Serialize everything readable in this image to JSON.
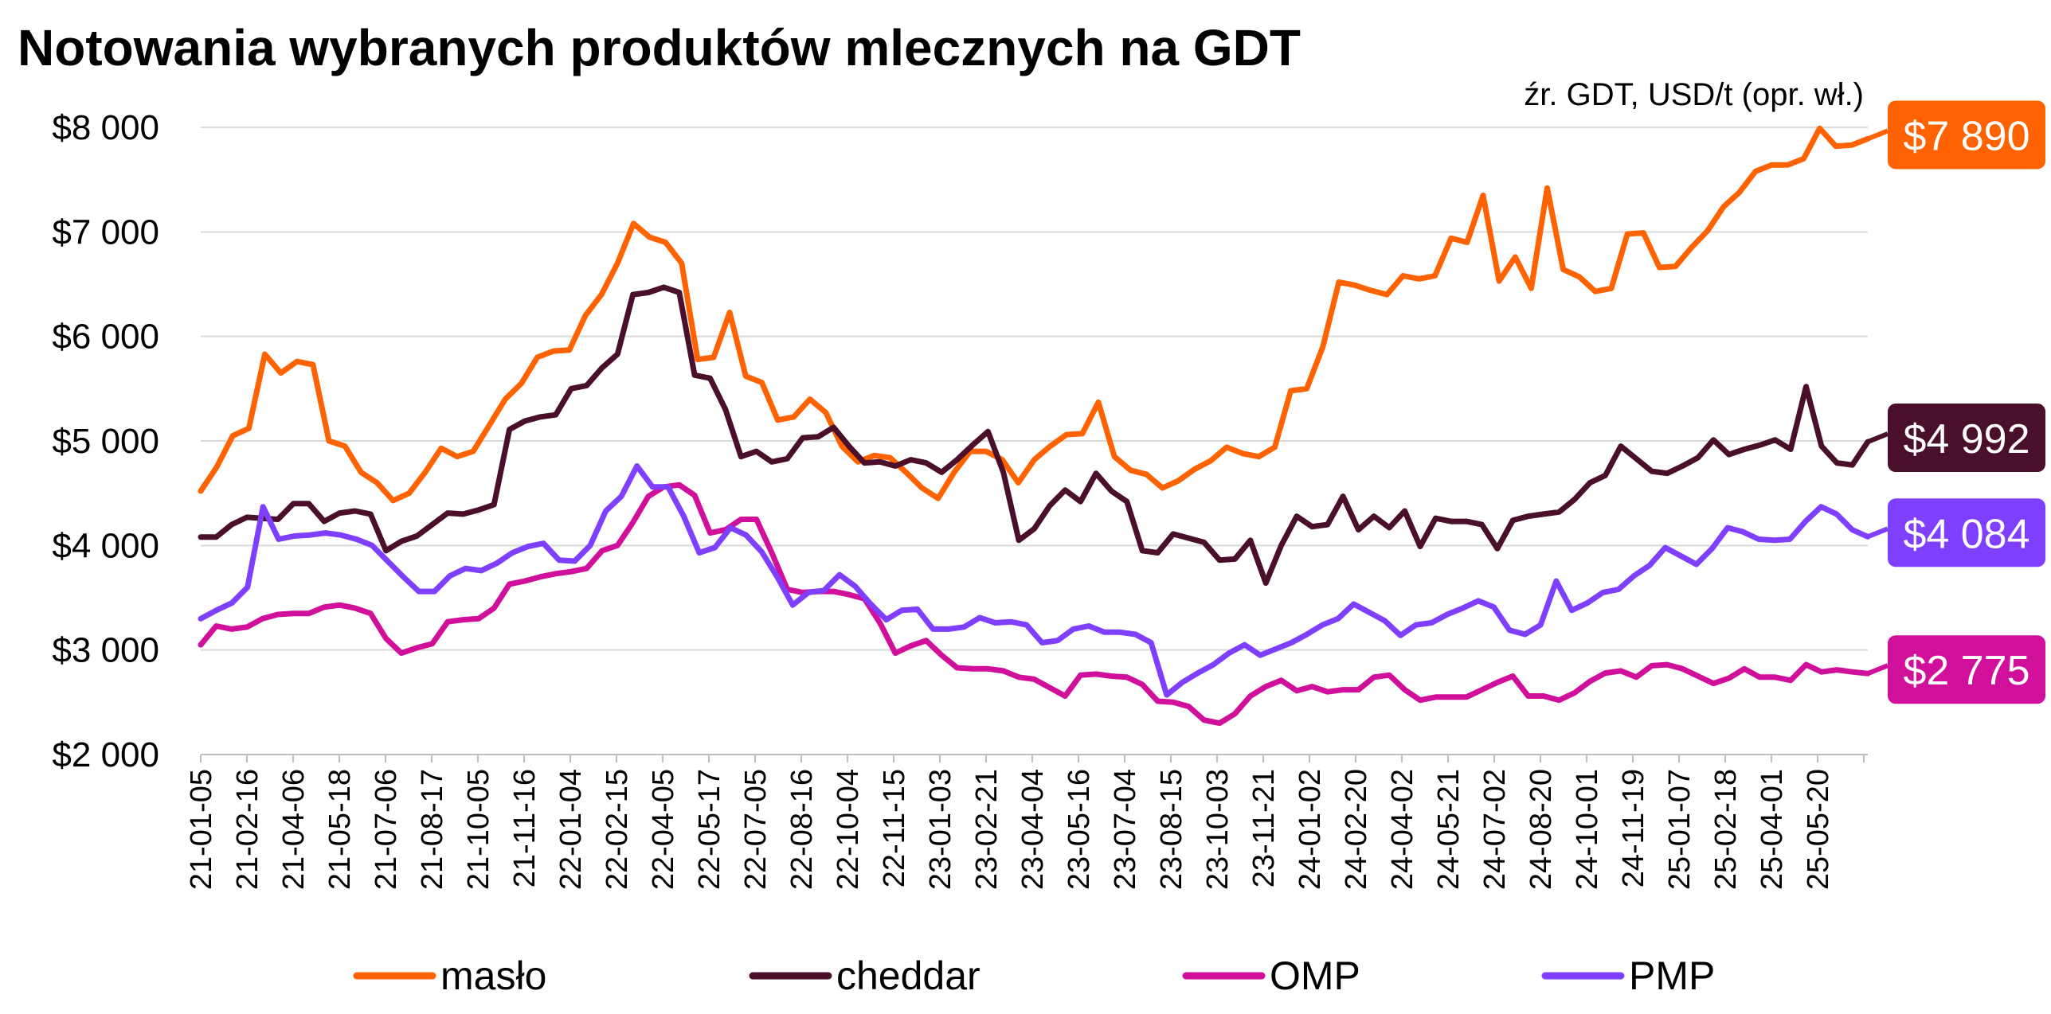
{
  "chart_data": {
    "type": "line",
    "title": "Notowania wybranych produktów mlecznych na GDT",
    "source": "źr. GDT, USD/t (opr. wł.)",
    "ylim": [
      2000,
      8000
    ],
    "yticks": [
      2000,
      3000,
      4000,
      5000,
      6000,
      7000,
      8000
    ],
    "ytick_labels": [
      "$2 000",
      "$3 000",
      "$4 000",
      "$5 000",
      "$6 000",
      "$7 000",
      "$8 000"
    ],
    "xtick_labels": [
      "21-01-05",
      "21-02-16",
      "21-04-06",
      "21-05-18",
      "21-07-06",
      "21-08-17",
      "21-10-05",
      "21-11-16",
      "22-01-04",
      "22-02-15",
      "22-04-05",
      "22-05-17",
      "22-07-05",
      "22-08-16",
      "22-10-04",
      "22-11-15",
      "23-01-03",
      "23-02-21",
      "23-04-04",
      "23-05-16",
      "23-07-04",
      "23-08-15",
      "23-10-03",
      "23-11-21",
      "24-01-02",
      "24-02-20",
      "24-04-02",
      "24-05-21",
      "24-07-02",
      "24-08-20",
      "24-10-01",
      "24-11-19",
      "25-01-07",
      "25-02-18",
      "25-04-01",
      "25-05-20"
    ],
    "grid": true,
    "legend_position": "bottom",
    "series": [
      {
        "name": "masło",
        "color": "#ff6200",
        "end_label": "$7 890",
        "values": [
          4520,
          4750,
          5050,
          5120,
          5830,
          5650,
          5760,
          5730,
          5000,
          4950,
          4700,
          4600,
          4430,
          4500,
          4700,
          4930,
          4850,
          4900,
          5150,
          5400,
          5550,
          5800,
          5860,
          5870,
          6200,
          6400,
          6700,
          7080,
          6950,
          6900,
          6700,
          5780,
          5800,
          6230,
          5620,
          5560,
          5200,
          5230,
          5400,
          5270,
          4950,
          4800,
          4860,
          4840,
          4700,
          4550,
          4450,
          4700,
          4900,
          4900,
          4820,
          4600,
          4820,
          4950,
          5060,
          5070,
          5370,
          4850,
          4720,
          4680,
          4550,
          4620,
          4730,
          4810,
          4940,
          4880,
          4850,
          4940,
          5480,
          5500,
          5900,
          6520,
          6490,
          6440,
          6400,
          6580,
          6550,
          6580,
          6940,
          6900,
          7350,
          6530,
          6760,
          6460,
          7420,
          6640,
          6570,
          6430,
          6460,
          6980,
          6990,
          6660,
          6670,
          6850,
          7010,
          7240,
          7380,
          7580,
          7640,
          7640,
          7700,
          7990,
          7820,
          7830,
          7890
        ]
      },
      {
        "name": "cheddar",
        "color": "#4a0f2a",
        "end_label": "$4 992",
        "values": [
          4080,
          4080,
          4200,
          4270,
          4260,
          4250,
          4400,
          4400,
          4230,
          4310,
          4330,
          4300,
          3950,
          4040,
          4090,
          4200,
          4310,
          4300,
          4340,
          4390,
          5110,
          5190,
          5230,
          5250,
          5500,
          5530,
          5700,
          5830,
          6400,
          6420,
          6470,
          6420,
          5630,
          5600,
          5300,
          4850,
          4900,
          4800,
          4830,
          5030,
          5040,
          5130,
          4950,
          4790,
          4800,
          4760,
          4820,
          4790,
          4700,
          4820,
          4960,
          5090,
          4700,
          4050,
          4160,
          4380,
          4530,
          4420,
          4690,
          4520,
          4420,
          3950,
          3930,
          4110,
          4070,
          4030,
          3860,
          3870,
          4050,
          3640,
          4000,
          4280,
          4180,
          4200,
          4470,
          4150,
          4280,
          4170,
          4330,
          3990,
          4260,
          4230,
          4230,
          4200,
          3970,
          4240,
          4280,
          4300,
          4320,
          4440,
          4600,
          4670,
          4950,
          4830,
          4710,
          4690,
          4760,
          4840,
          5010,
          4870,
          4920,
          4960,
          5010,
          4920,
          5520,
          4950,
          4790,
          4770,
          4992
        ]
      },
      {
        "name": "OMP",
        "color": "#d0109a",
        "end_label": "$2 775",
        "values": [
          3050,
          3230,
          3200,
          3220,
          3300,
          3340,
          3350,
          3350,
          3410,
          3430,
          3400,
          3350,
          3110,
          2970,
          3020,
          3060,
          3270,
          3290,
          3300,
          3400,
          3630,
          3660,
          3700,
          3730,
          3750,
          3780,
          3950,
          4000,
          4220,
          4470,
          4560,
          4580,
          4480,
          4120,
          4150,
          4250,
          4250,
          3930,
          3580,
          3550,
          3560,
          3560,
          3530,
          3490,
          3260,
          2970,
          3040,
          3090,
          2950,
          2830,
          2820,
          2820,
          2800,
          2740,
          2720,
          2640,
          2560,
          2760,
          2770,
          2750,
          2740,
          2670,
          2510,
          2500,
          2460,
          2330,
          2300,
          2390,
          2560,
          2650,
          2710,
          2610,
          2650,
          2600,
          2620,
          2620,
          2740,
          2760,
          2620,
          2520,
          2550,
          2550,
          2550,
          2620,
          2690,
          2750,
          2560,
          2560,
          2520,
          2590,
          2700,
          2780,
          2800,
          2740,
          2850,
          2860,
          2820,
          2750,
          2680,
          2730,
          2820,
          2740,
          2740,
          2710,
          2860,
          2790,
          2810,
          2790,
          2775
        ]
      },
      {
        "name": "PMP",
        "color": "#7f3fff",
        "end_label": "$4 084",
        "values": [
          3300,
          3380,
          3450,
          3600,
          4370,
          4060,
          4090,
          4100,
          4120,
          4100,
          4060,
          4000,
          3850,
          3700,
          3560,
          3560,
          3710,
          3780,
          3760,
          3830,
          3930,
          3990,
          4020,
          3860,
          3850,
          4000,
          4330,
          4470,
          4760,
          4560,
          4560,
          4280,
          3930,
          3980,
          4170,
          4100,
          3940,
          3700,
          3430,
          3550,
          3570,
          3720,
          3610,
          3440,
          3290,
          3380,
          3390,
          3200,
          3200,
          3220,
          3310,
          3260,
          3270,
          3240,
          3070,
          3090,
          3200,
          3230,
          3170,
          3170,
          3150,
          3070,
          2570,
          2690,
          2780,
          2860,
          2970,
          3050,
          2950,
          3010,
          3070,
          3150,
          3240,
          3300,
          3440,
          3360,
          3280,
          3140,
          3240,
          3260,
          3340,
          3400,
          3470,
          3410,
          3190,
          3150,
          3240,
          3660,
          3380,
          3450,
          3550,
          3580,
          3710,
          3810,
          3980,
          3900,
          3820,
          3970,
          4170,
          4130,
          4060,
          4050,
          4060,
          4230,
          4370,
          4300,
          4150,
          4084
        ]
      }
    ]
  }
}
